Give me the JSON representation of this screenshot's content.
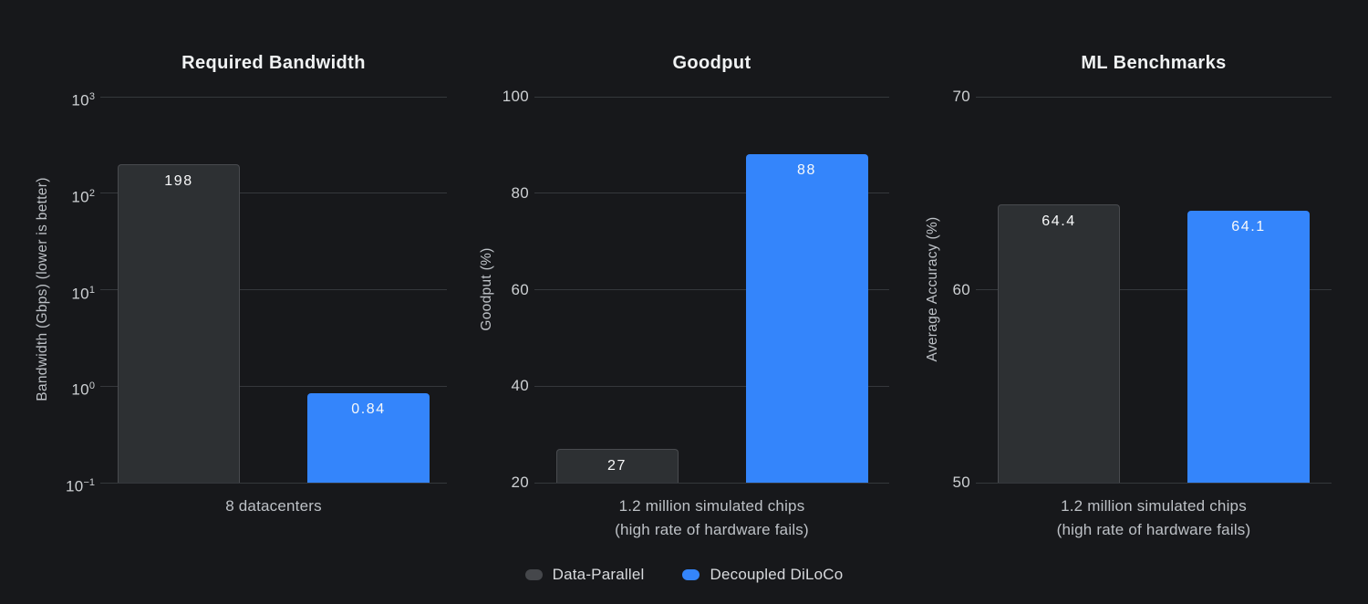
{
  "colors": {
    "background": "#17181B",
    "bar_gray": "#2D3033",
    "bar_gray_border": "#494B4F",
    "bar_blue": "#3485FB",
    "grid": "#35383C",
    "swatch_gray": "#45474B",
    "text_title": "#F1F3F4",
    "text_tick": "#CDD0D3",
    "text_axis": "#BDC1C6",
    "text_value": "#F8F9FA",
    "text_legend": "#D8DADD"
  },
  "legend": {
    "items": [
      {
        "label": "Data-Parallel",
        "swatch": "gray"
      },
      {
        "label": "Decoupled DiLoCo",
        "swatch": "blue"
      }
    ],
    "position": "bottom-center"
  },
  "chart_data": [
    {
      "type": "bar",
      "title": "Required Bandwidth",
      "ylabel": "Bandwidth (Gbps) (lower is better)",
      "xlabel_lines": [
        "8 datacenters"
      ],
      "categories": [
        "8 datacenters"
      ],
      "yscale": "log",
      "ylim": [
        0.1,
        1000
      ],
      "grid": true,
      "yticks": [
        {
          "value": 1000,
          "label": "10^3"
        },
        {
          "value": 100,
          "label": "10^2"
        },
        {
          "value": 10,
          "label": "10^1"
        },
        {
          "value": 1,
          "label": "10^0"
        },
        {
          "value": 0.1,
          "label": "10^−1"
        }
      ],
      "series": [
        {
          "name": "Data-Parallel",
          "value": 198,
          "label": "198",
          "swatch": "gray"
        },
        {
          "name": "Decoupled DiLoCo",
          "value": 0.84,
          "label": "0.84",
          "swatch": "blue"
        }
      ]
    },
    {
      "type": "bar",
      "title": "Goodput",
      "ylabel": "Goodput (%)",
      "xlabel_lines": [
        "1.2 million simulated chips",
        "(high rate of hardware fails)"
      ],
      "categories": [
        "1.2 million simulated chips (high rate of hardware fails)"
      ],
      "yscale": "linear",
      "ylim": [
        20,
        100
      ],
      "grid": true,
      "yticks": [
        {
          "value": 100,
          "label": "100"
        },
        {
          "value": 80,
          "label": "80"
        },
        {
          "value": 60,
          "label": "60"
        },
        {
          "value": 40,
          "label": "40"
        },
        {
          "value": 20,
          "label": "20"
        }
      ],
      "series": [
        {
          "name": "Data-Parallel",
          "value": 27,
          "label": "27",
          "swatch": "gray"
        },
        {
          "name": "Decoupled DiLoCo",
          "value": 88,
          "label": "88",
          "swatch": "blue"
        }
      ]
    },
    {
      "type": "bar",
      "title": "ML Benchmarks",
      "ylabel": "Average Accuracy (%)",
      "xlabel_lines": [
        "1.2 million simulated chips",
        "(high rate of hardware fails)"
      ],
      "categories": [
        "1.2 million simulated chips (high rate of hardware fails)"
      ],
      "yscale": "linear",
      "ylim": [
        50,
        70
      ],
      "grid": true,
      "yticks": [
        {
          "value": 70,
          "label": "70"
        },
        {
          "value": 60,
          "label": "60"
        },
        {
          "value": 50,
          "label": "50"
        }
      ],
      "series": [
        {
          "name": "Data-Parallel",
          "value": 64.4,
          "label": "64.4",
          "swatch": "gray"
        },
        {
          "name": "Decoupled DiLoCo",
          "value": 64.1,
          "label": "64.1",
          "swatch": "blue"
        }
      ]
    }
  ]
}
